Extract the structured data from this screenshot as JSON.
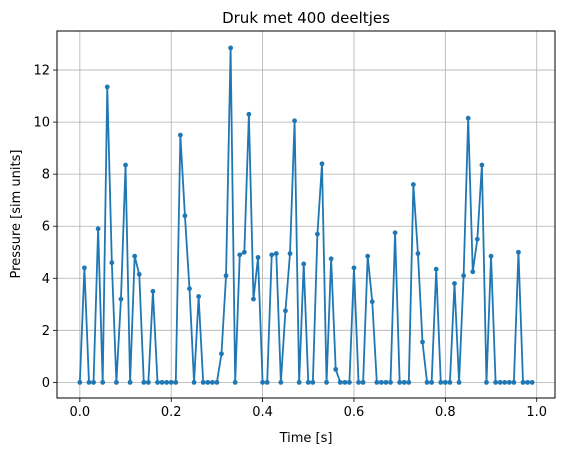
{
  "chart_data": {
    "type": "line",
    "title": "Druk met 400 deeltjes",
    "xlabel": "Time [s]",
    "ylabel": "Pressure [sim units]",
    "xlim": [
      -0.05,
      1.04
    ],
    "ylim": [
      -0.6,
      13.5
    ],
    "xticks": [
      0.0,
      0.2,
      0.4,
      0.6,
      0.8,
      1.0
    ],
    "xtick_labels": [
      "0.0",
      "0.2",
      "0.4",
      "0.6",
      "0.8",
      "1.0"
    ],
    "yticks": [
      0,
      2,
      4,
      6,
      8,
      10,
      12
    ],
    "ytick_labels": [
      "0",
      "2",
      "4",
      "6",
      "8",
      "10",
      "12"
    ],
    "grid": true,
    "color": "#1f77b4",
    "series": [
      {
        "marker": "circle",
        "x": [
          0.0,
          0.01,
          0.02,
          0.03,
          0.04,
          0.05,
          0.06,
          0.07,
          0.08,
          0.09,
          0.1,
          0.11,
          0.12,
          0.13,
          0.14,
          0.15,
          0.16,
          0.17,
          0.18,
          0.19,
          0.2,
          0.21,
          0.22,
          0.23,
          0.24,
          0.25,
          0.26,
          0.27,
          0.28,
          0.29,
          0.3,
          0.31,
          0.32,
          0.33,
          0.34,
          0.35,
          0.36,
          0.37,
          0.38,
          0.39,
          0.4,
          0.41,
          0.42,
          0.43,
          0.44,
          0.45,
          0.46,
          0.47,
          0.48,
          0.49,
          0.5,
          0.51,
          0.52,
          0.53,
          0.54,
          0.55,
          0.56,
          0.57,
          0.58,
          0.59,
          0.6,
          0.61,
          0.62,
          0.63,
          0.64,
          0.65,
          0.66,
          0.67,
          0.68,
          0.69,
          0.7,
          0.71,
          0.72,
          0.73,
          0.74,
          0.75,
          0.76,
          0.77,
          0.78,
          0.79,
          0.8,
          0.81,
          0.82,
          0.83,
          0.84,
          0.85,
          0.86,
          0.87,
          0.88,
          0.89,
          0.9,
          0.91,
          0.92,
          0.93,
          0.94,
          0.95,
          0.96,
          0.97,
          0.98,
          0.99
        ],
        "y": [
          0,
          4.4,
          0,
          0,
          5.9,
          0,
          11.35,
          4.6,
          0,
          3.2,
          8.35,
          0,
          4.85,
          4.15,
          0,
          0,
          3.5,
          0,
          0,
          0,
          0,
          0,
          9.5,
          6.4,
          3.6,
          0,
          3.3,
          0,
          0,
          0,
          0,
          1.1,
          4.1,
          12.85,
          0,
          4.9,
          5.0,
          10.3,
          3.2,
          4.8,
          0,
          0,
          4.9,
          4.95,
          0,
          2.75,
          4.95,
          10.05,
          0,
          4.55,
          0,
          0,
          5.7,
          8.4,
          0,
          4.75,
          0.5,
          0,
          0,
          0,
          4.4,
          0,
          0,
          4.85,
          3.1,
          0,
          0,
          0,
          0,
          5.75,
          0,
          0,
          0,
          7.6,
          4.95,
          1.55,
          0,
          0,
          4.35,
          0,
          0,
          0,
          3.8,
          0,
          4.1,
          10.15,
          4.25,
          5.5,
          8.35,
          0,
          4.85,
          0,
          0,
          0,
          0,
          0,
          5.0,
          0,
          0,
          0
        ]
      }
    ]
  }
}
